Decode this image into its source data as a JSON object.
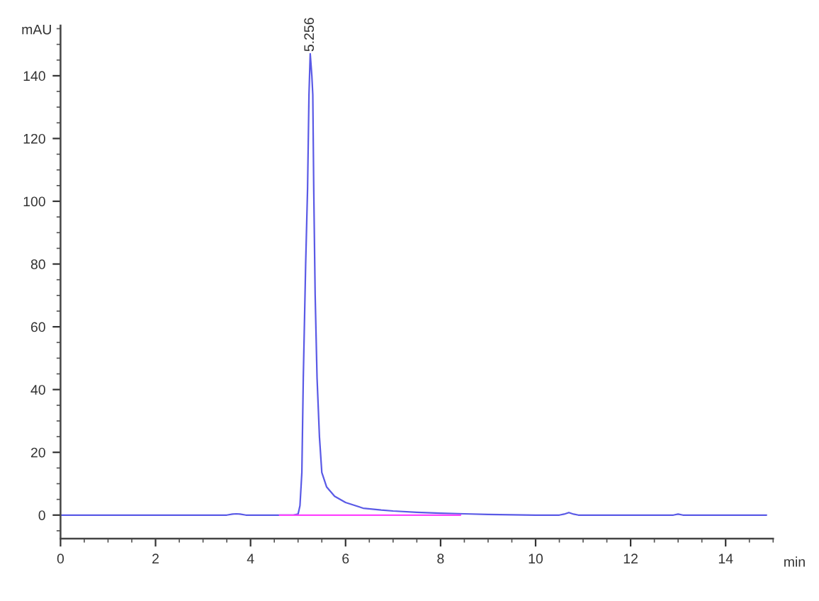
{
  "chart_data": {
    "type": "line",
    "xlabel": "min",
    "ylabel": "mAU",
    "xlim": [
      0,
      15
    ],
    "ylim": [
      -7.5,
      156
    ],
    "xticks": [
      0,
      2,
      4,
      6,
      8,
      10,
      12,
      14
    ],
    "yticks": [
      0,
      20,
      40,
      60,
      80,
      100,
      120,
      140
    ],
    "grid": false,
    "series": [
      {
        "color": "#5a5ae6",
        "x": [
          0,
          0.5,
          1,
          1.5,
          2,
          2.5,
          3,
          3.5,
          3.62,
          3.7,
          3.78,
          3.9,
          4.2,
          4.6,
          4.9,
          5.0,
          5.04,
          5.08,
          5.11,
          5.16,
          5.2,
          5.23,
          5.256,
          5.29,
          5.31,
          5.33,
          5.36,
          5.4,
          5.45,
          5.5,
          5.6,
          5.77,
          6.0,
          6.37,
          6.75,
          7.0,
          7.5,
          8.0,
          8.5,
          9.0,
          9.5,
          10.0,
          10.5,
          10.6,
          10.7,
          10.8,
          10.9,
          11.5,
          12.0,
          12.5,
          12.9,
          13.0,
          13.1,
          13.5,
          14.0,
          14.5,
          14.86
        ],
        "values": [
          0,
          0,
          0,
          0,
          0,
          0,
          0,
          0,
          0.3,
          0.4,
          0.3,
          0,
          0,
          0,
          0,
          0.3,
          3,
          13.6,
          43.6,
          80,
          104,
          134,
          147,
          140,
          134,
          104,
          70,
          43.6,
          25,
          13.6,
          9,
          6,
          4,
          2.2,
          1.6,
          1.3,
          0.9,
          0.6,
          0.4,
          0.2,
          0.1,
          0,
          0,
          0.3,
          0.8,
          0.3,
          0,
          0,
          0,
          0,
          0,
          0.3,
          0,
          0,
          0,
          0,
          0
        ]
      },
      {
        "color": "#ff44ff",
        "x": [
          4.61,
          8.42
        ],
        "values": [
          0,
          0
        ]
      }
    ],
    "annotations": [
      {
        "text": "5.256",
        "x": 5.256,
        "y": 147
      }
    ]
  }
}
